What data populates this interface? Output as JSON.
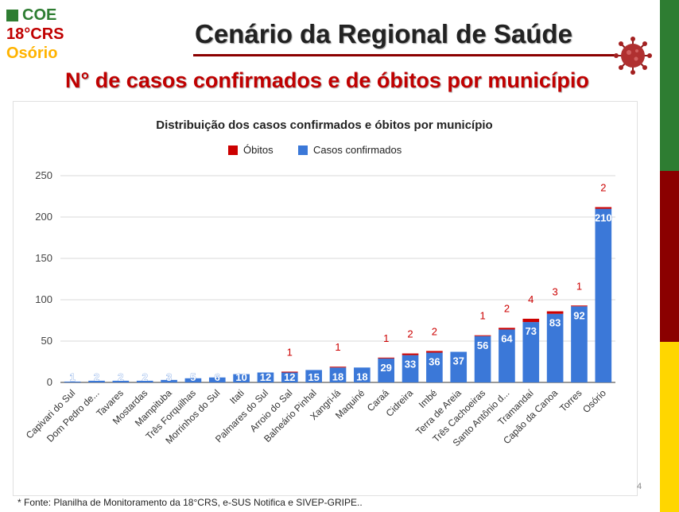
{
  "header": {
    "coe": "COE",
    "crs": "18°CRS",
    "city": "Osório",
    "title": "Cenário da Regional de Saúde",
    "subtitle": "N° de casos confirmados e de óbitos por município"
  },
  "colors": {
    "green": "#2e7d32",
    "red": "#8b0000",
    "yellow": "#ffd600",
    "confirmed": "#3b78d8",
    "deaths": "#cc0000"
  },
  "footer": {
    "source": "* Fonte: Planilha de Monitoramento da 18°CRS, e-SUS Notifica e SIVEP-GRIPE..",
    "page": "4"
  },
  "chart_data": {
    "type": "bar",
    "stacked": true,
    "title": "Distribuição dos casos confirmados e óbitos por município",
    "legend": [
      "Óbitos",
      "Casos confirmados"
    ],
    "legend_position": "top",
    "ylim": [
      0,
      250
    ],
    "yticks": [
      0,
      50,
      100,
      150,
      200,
      250
    ],
    "categories": [
      "Capivari do Sul",
      "Dom Pedro de...",
      "Tavares",
      "Mostardas",
      "Mampituba",
      "Três Forquilhas",
      "Morrinhos do Sul",
      "Itati",
      "Palmares do Sul",
      "Arroio do Sal",
      "Balneário Pinhal",
      "Xangri-lá",
      "Maquiné",
      "Caraá",
      "Cidreira",
      "Imbé",
      "Terra de Areia",
      "Três Cachoeiras",
      "Santo Antônio d...",
      "Tramandaí",
      "Capão da Canoa",
      "Torres",
      "Osório"
    ],
    "series": [
      {
        "name": "Casos confirmados",
        "values": [
          1,
          2,
          2,
          2,
          3,
          5,
          6,
          10,
          12,
          12,
          15,
          18,
          18,
          29,
          33,
          36,
          37,
          56,
          64,
          73,
          83,
          92,
          210
        ]
      },
      {
        "name": "Óbitos",
        "values": [
          0,
          0,
          0,
          0,
          0,
          0,
          0,
          0,
          0,
          1,
          0,
          1,
          0,
          1,
          2,
          2,
          0,
          1,
          2,
          4,
          3,
          1,
          2
        ]
      }
    ]
  }
}
